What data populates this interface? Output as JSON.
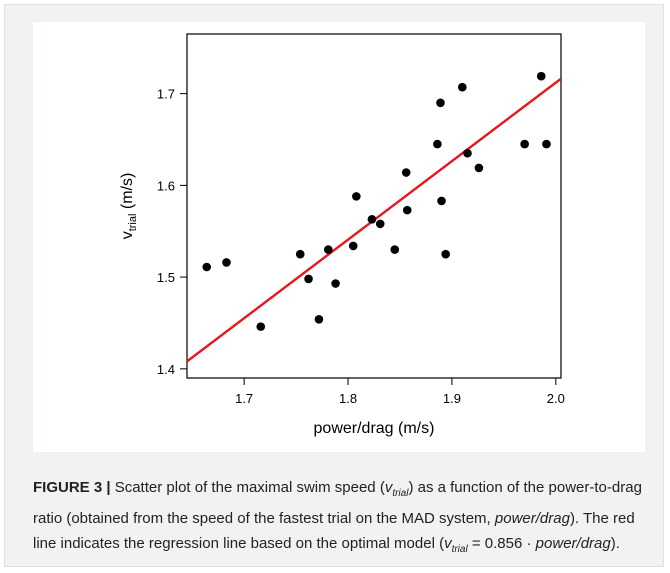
{
  "chart_data": {
    "type": "scatter",
    "xlabel": "power/drag (m/s)",
    "ylabel_main": "v",
    "ylabel_sub": "trial",
    "ylabel_unit": " (m/s)",
    "xlim": [
      1.645,
      2.005
    ],
    "ylim": [
      1.39,
      1.765
    ],
    "xticks": [
      {
        "value": 1.7,
        "label": "1.7"
      },
      {
        "value": 1.8,
        "label": "1.8"
      },
      {
        "value": 1.9,
        "label": "1.9"
      },
      {
        "value": 2.0,
        "label": "2.0"
      }
    ],
    "yticks": [
      {
        "value": 1.4,
        "label": "1.4"
      },
      {
        "value": 1.5,
        "label": "1.5"
      },
      {
        "value": 1.6,
        "label": "1.6"
      },
      {
        "value": 1.7,
        "label": "1.7"
      }
    ],
    "points": [
      [
        1.664,
        1.511
      ],
      [
        1.683,
        1.516
      ],
      [
        1.716,
        1.446
      ],
      [
        1.754,
        1.525
      ],
      [
        1.762,
        1.498
      ],
      [
        1.772,
        1.454
      ],
      [
        1.781,
        1.53
      ],
      [
        1.788,
        1.493
      ],
      [
        1.805,
        1.534
      ],
      [
        1.808,
        1.588
      ],
      [
        1.823,
        1.563
      ],
      [
        1.831,
        1.558
      ],
      [
        1.845,
        1.53
      ],
      [
        1.856,
        1.614
      ],
      [
        1.857,
        1.573
      ],
      [
        1.886,
        1.645
      ],
      [
        1.889,
        1.69
      ],
      [
        1.89,
        1.583
      ],
      [
        1.894,
        1.525
      ],
      [
        1.91,
        1.707
      ],
      [
        1.915,
        1.635
      ],
      [
        1.926,
        1.619
      ],
      [
        1.97,
        1.645
      ],
      [
        1.986,
        1.719
      ],
      [
        1.991,
        1.645
      ]
    ],
    "regression": {
      "slope": 0.856,
      "intercept": 0,
      "color": "#e8161d"
    },
    "point_color": "#000000",
    "grid": false
  },
  "caption": {
    "fig_label": "FIGURE 3 |",
    "t1": " Scatter plot of the maximal swim speed (",
    "v1": "v",
    "v1sub": "trial",
    "t2": ") as a function of the power-to-drag ratio (obtained from the speed of the fastest trial on the MAD system, ",
    "pd1": "power/drag",
    "t3": "). The red line indicates the regression line based on the optimal model (",
    "v2": "v",
    "v2sub": "trial",
    "t4": " = 0.856 · ",
    "pd2": "power/drag",
    "t5": ")."
  }
}
